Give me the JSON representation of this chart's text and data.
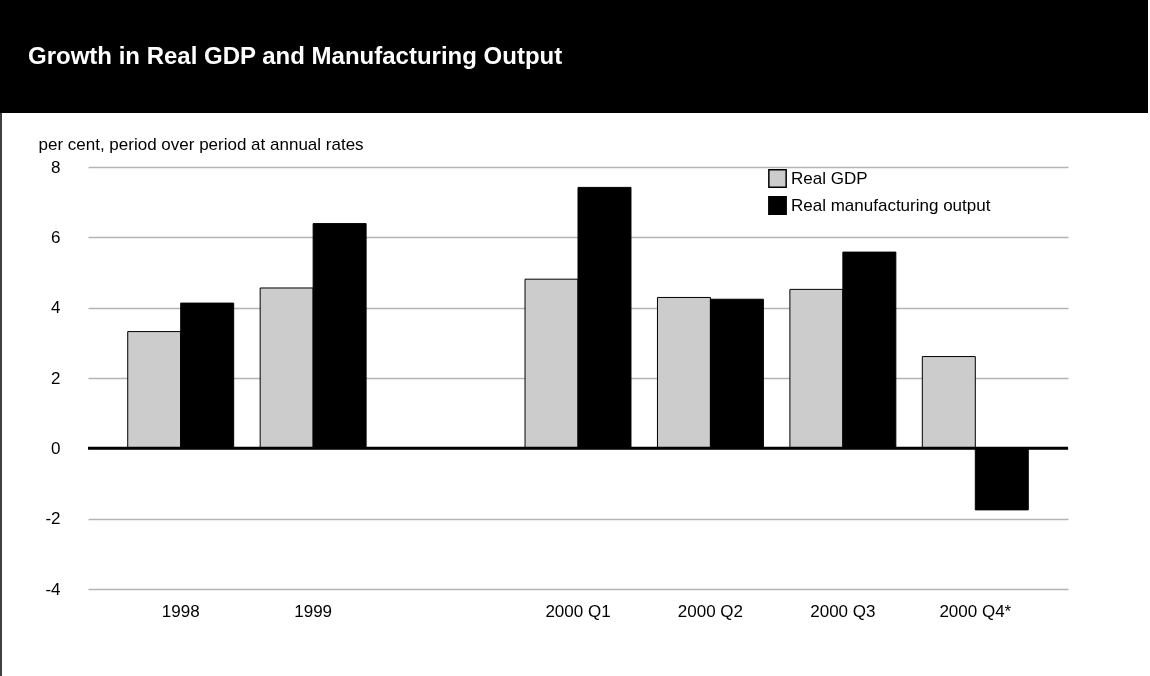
{
  "chart_data": {
    "type": "bar",
    "title": "Growth in Real GDP and Manufacturing Output",
    "ylabel": "per cent, period over period at annual rates",
    "categories": [
      "1998",
      "1999",
      null,
      "2000 Q1",
      "2000 Q2",
      "2000 Q3",
      "2000 Q4*"
    ],
    "series": [
      {
        "name": "Real GDP",
        "color": "#cccccc",
        "values": [
          3.32,
          4.56,
          null,
          4.81,
          4.29,
          4.52,
          2.61
        ]
      },
      {
        "name": "Real manufacturing output",
        "color": "#000000",
        "values": [
          4.13,
          6.39,
          null,
          7.42,
          4.24,
          5.58,
          -1.75
        ]
      }
    ],
    "ylim": [
      -4,
      8
    ],
    "yticks": [
      -4,
      -2,
      0,
      2,
      4,
      6,
      8
    ],
    "grid": "y",
    "legend": "top right",
    "ref_lines": [
      {
        "axis": "y",
        "value": 0,
        "color": "#000000"
      }
    ]
  }
}
